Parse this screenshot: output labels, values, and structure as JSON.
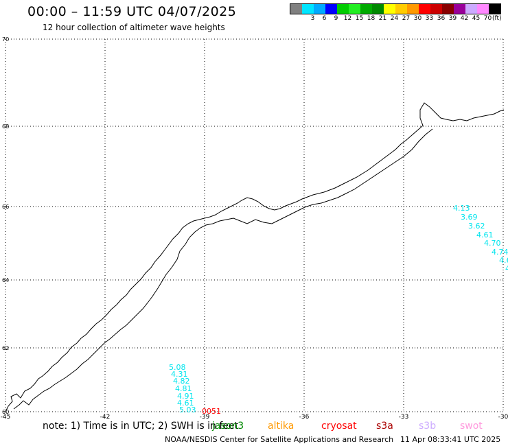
{
  "header": {
    "title": "00:00 – 11:59 UTC 04/07/2025",
    "subtitle": "12 hour collection of altimeter wave heights"
  },
  "legend": {
    "unit": "(ft)",
    "bins": [
      {
        "label": "",
        "color": "#808080"
      },
      {
        "label": "3",
        "color": "#00e5ff"
      },
      {
        "label": "6",
        "color": "#00aaff"
      },
      {
        "label": "9",
        "color": "#0000ff"
      },
      {
        "label": "12",
        "color": "#00cc00"
      },
      {
        "label": "15",
        "color": "#22ee22"
      },
      {
        "label": "18",
        "color": "#00aa00"
      },
      {
        "label": "21",
        "color": "#008800"
      },
      {
        "label": "24",
        "color": "#ffff00"
      },
      {
        "label": "27",
        "color": "#ffcc00"
      },
      {
        "label": "30",
        "color": "#ff9900"
      },
      {
        "label": "33",
        "color": "#ff0000"
      },
      {
        "label": "36",
        "color": "#cc0000"
      },
      {
        "label": "39",
        "color": "#880000"
      },
      {
        "label": "42",
        "color": "#990099"
      },
      {
        "label": "45",
        "color": "#ccaaff"
      },
      {
        "label": "70",
        "color": "#ff88ff"
      },
      {
        "label": "",
        "color": "#000000"
      }
    ]
  },
  "map": {
    "lon_labels": [
      "-45",
      "-42",
      "-39",
      "-36",
      "-33",
      "-30"
    ],
    "lat_labels": [
      "70",
      "68",
      "66",
      "64",
      "62",
      "60"
    ],
    "lon_values": [
      -45,
      -42,
      -39,
      -36,
      -33,
      -30
    ],
    "lat_values": [
      70,
      68,
      66,
      64,
      62,
      60
    ],
    "swh_color": "#00e5ee",
    "swh_track_east": [
      "4.13",
      "3.69",
      "3.62",
      "4.61",
      "4.70",
      "4.74",
      "4.6",
      "4"
    ],
    "swh_track_south": [
      "5.08",
      "4.31",
      "4.82",
      "4.81",
      "4.91",
      "4.61",
      "5.03"
    ],
    "marker_label": "0051",
    "marker_color": "#ff0000"
  },
  "note": {
    "text": "note: 1) Time is in UTC; 2) SWH is in feet"
  },
  "satellites": [
    {
      "name": "jason3",
      "color": "#008800"
    },
    {
      "name": "altika",
      "color": "#ff9900"
    },
    {
      "name": "cryosat",
      "color": "#ff0000"
    },
    {
      "name": "s3a",
      "color": "#aa0000"
    },
    {
      "name": "s3b",
      "color": "#ccaaff"
    },
    {
      "name": "swot",
      "color": "#ff99dd"
    }
  ],
  "footer": {
    "credit": "NOAA/NESDIS Center for Satellite Applications and Research",
    "timestamp": "11 Apr 08:33:41 UTC 2025"
  }
}
